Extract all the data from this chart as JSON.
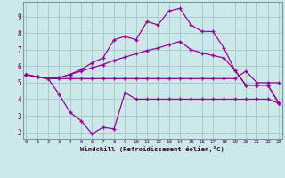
{
  "bg_color": "#cce8e8",
  "grid_color": "#aacccc",
  "line_color": "#990099",
  "xlim_min": -0.3,
  "xlim_max": 23.3,
  "ylim_min": 1.6,
  "ylim_max": 9.9,
  "yticks": [
    2,
    3,
    4,
    5,
    6,
    7,
    8,
    9
  ],
  "xticks": [
    0,
    1,
    2,
    3,
    4,
    5,
    6,
    7,
    8,
    9,
    10,
    11,
    12,
    13,
    14,
    15,
    16,
    17,
    18,
    19,
    20,
    21,
    22,
    23
  ],
  "xlabel": "Windchill (Refroidissement éolien,°C)",
  "s1_x": [
    0,
    1,
    2,
    3,
    4,
    5,
    6,
    7,
    8,
    9,
    10,
    11,
    12,
    13,
    14,
    15,
    16,
    17,
    18,
    19,
    20,
    21,
    22,
    23
  ],
  "s1_y": [
    5.5,
    5.35,
    5.25,
    5.25,
    5.25,
    5.25,
    5.25,
    5.25,
    5.25,
    5.25,
    5.25,
    5.25,
    5.25,
    5.25,
    5.25,
    5.25,
    5.25,
    5.25,
    5.25,
    5.25,
    5.7,
    5.0,
    5.0,
    5.0
  ],
  "s2_x": [
    0,
    1,
    2,
    3,
    4,
    5,
    6,
    7,
    8,
    9,
    10,
    11,
    12,
    13,
    14,
    15,
    16,
    17,
    18,
    19,
    20,
    21,
    22,
    23
  ],
  "s2_y": [
    5.5,
    5.35,
    5.25,
    4.3,
    3.2,
    2.7,
    1.9,
    2.3,
    2.2,
    4.4,
    4.0,
    4.0,
    4.0,
    4.0,
    4.0,
    4.0,
    4.0,
    4.0,
    4.0,
    4.0,
    4.0,
    4.0,
    4.0,
    3.75
  ],
  "s3_x": [
    0,
    1,
    2,
    3,
    4,
    5,
    6,
    7,
    8,
    9,
    10,
    11,
    12,
    13,
    14,
    15,
    16,
    17,
    18,
    19,
    20,
    21,
    22,
    23
  ],
  "s3_y": [
    5.5,
    5.35,
    5.25,
    5.3,
    5.5,
    5.7,
    5.9,
    6.1,
    6.35,
    6.55,
    6.75,
    6.95,
    7.1,
    7.3,
    7.5,
    7.0,
    6.8,
    6.65,
    6.5,
    5.75,
    4.85,
    4.85,
    4.85,
    3.75
  ],
  "s4_x": [
    0,
    1,
    2,
    3,
    4,
    5,
    6,
    7,
    8,
    9,
    10,
    11,
    12,
    13,
    14,
    15,
    16,
    17,
    18,
    19,
    20,
    21,
    22,
    23
  ],
  "s4_y": [
    5.5,
    5.35,
    5.25,
    5.3,
    5.5,
    5.8,
    6.2,
    6.5,
    7.6,
    7.8,
    7.6,
    8.7,
    8.5,
    9.35,
    9.5,
    8.5,
    8.1,
    8.1,
    7.1,
    5.75,
    4.85,
    4.85,
    4.85,
    3.75
  ]
}
